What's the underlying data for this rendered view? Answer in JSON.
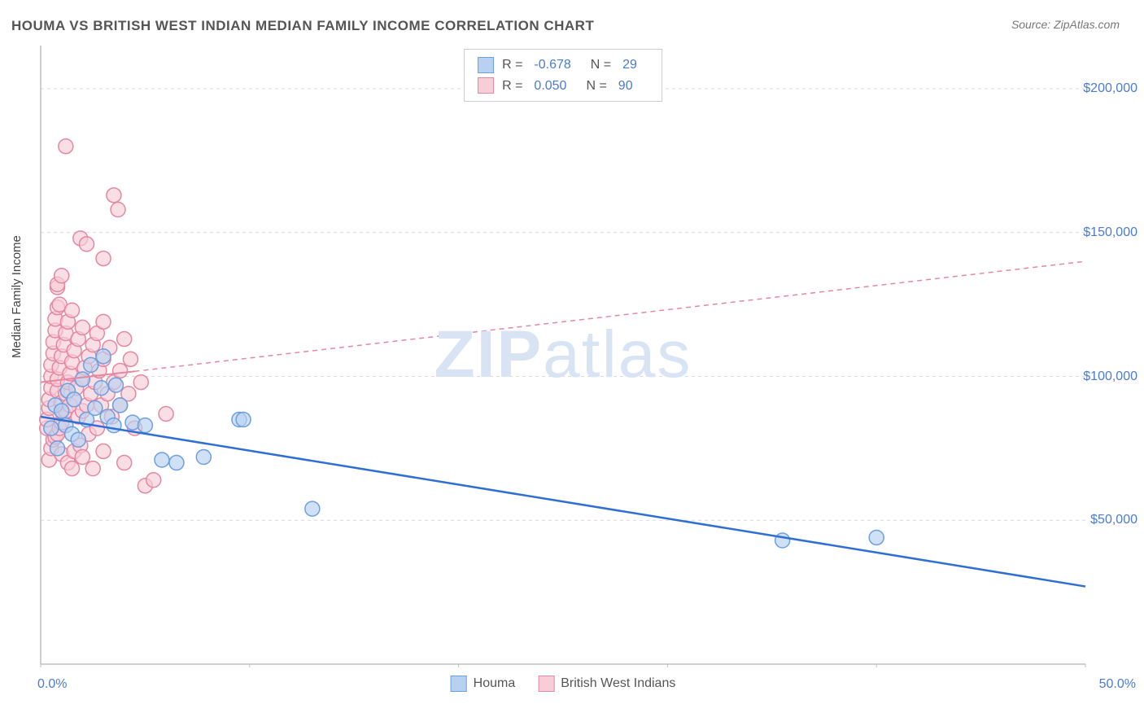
{
  "title": "HOUMA VS BRITISH WEST INDIAN MEDIAN FAMILY INCOME CORRELATION CHART",
  "source": "Source: ZipAtlas.com",
  "ylabel": "Median Family Income",
  "watermark_zip": "ZIP",
  "watermark_atlas": "atlas",
  "chart": {
    "type": "scatter",
    "xlim": [
      0,
      50
    ],
    "ylim": [
      0,
      215000
    ],
    "xtick_labels": [
      "0.0%",
      "50.0%"
    ],
    "ytick_values": [
      50000,
      100000,
      150000,
      200000
    ],
    "ytick_labels": [
      "$50,000",
      "$100,000",
      "$150,000",
      "$200,000"
    ],
    "xticks_minor": [
      0,
      10,
      20,
      30,
      40,
      50
    ],
    "grid_color": "#d9d9d9",
    "axis_color": "#bfbfbf",
    "background_color": "#ffffff",
    "marker_radius": 9,
    "marker_stroke_width": 1.5,
    "series": [
      {
        "name": "Houma",
        "fill": "#b9d1f0",
        "stroke": "#6c9fe0",
        "trend": {
          "x1": 0,
          "y1": 86000,
          "x2": 50,
          "y2": 27000,
          "stroke": "#2f6fd4",
          "width": 2.5,
          "solid_until_x": 50
        },
        "points": [
          [
            0.5,
            82000
          ],
          [
            0.7,
            90000
          ],
          [
            0.8,
            75000
          ],
          [
            1.0,
            88000
          ],
          [
            1.2,
            83000
          ],
          [
            1.3,
            95000
          ],
          [
            1.5,
            80000
          ],
          [
            1.6,
            92000
          ],
          [
            1.8,
            78000
          ],
          [
            2.0,
            99000
          ],
          [
            2.2,
            85000
          ],
          [
            2.4,
            104000
          ],
          [
            2.6,
            89000
          ],
          [
            2.9,
            96000
          ],
          [
            3.0,
            107000
          ],
          [
            3.2,
            86000
          ],
          [
            3.5,
            83000
          ],
          [
            3.6,
            97000
          ],
          [
            3.8,
            90000
          ],
          [
            4.4,
            84000
          ],
          [
            5.0,
            83000
          ],
          [
            5.8,
            71000
          ],
          [
            6.5,
            70000
          ],
          [
            7.8,
            72000
          ],
          [
            9.5,
            85000
          ],
          [
            9.7,
            85000
          ],
          [
            13.0,
            54000
          ],
          [
            35.5,
            43000
          ],
          [
            40.0,
            44000
          ]
        ]
      },
      {
        "name": "British West Indians",
        "fill": "#f7cdd8",
        "stroke": "#e687a2",
        "trend": {
          "x1": 0,
          "y1": 98000,
          "x2": 50,
          "y2": 140000,
          "stroke": "#e687a2",
          "width": 2,
          "solid_until_x": 4.5
        },
        "points": [
          [
            0.3,
            82000
          ],
          [
            0.3,
            85000
          ],
          [
            0.4,
            89000
          ],
          [
            0.4,
            92000
          ],
          [
            0.4,
            71000
          ],
          [
            0.5,
            96000
          ],
          [
            0.5,
            100000
          ],
          [
            0.5,
            104000
          ],
          [
            0.5,
            75000
          ],
          [
            0.6,
            108000
          ],
          [
            0.6,
            112000
          ],
          [
            0.6,
            78000
          ],
          [
            0.7,
            116000
          ],
          [
            0.7,
            120000
          ],
          [
            0.7,
            79000
          ],
          [
            0.8,
            95000
          ],
          [
            0.8,
            99000
          ],
          [
            0.8,
            124000
          ],
          [
            0.8,
            131000
          ],
          [
            0.8,
            132000
          ],
          [
            0.8,
            80000
          ],
          [
            0.9,
            103000
          ],
          [
            0.9,
            125000
          ],
          [
            0.9,
            82000
          ],
          [
            1.0,
            88000
          ],
          [
            1.0,
            91000
          ],
          [
            1.0,
            107000
          ],
          [
            1.0,
            135000
          ],
          [
            1.0,
            84000
          ],
          [
            1.0,
            73000
          ],
          [
            1.1,
            111000
          ],
          [
            1.1,
            87000
          ],
          [
            1.2,
            94000
          ],
          [
            1.2,
            115000
          ],
          [
            1.2,
            88000
          ],
          [
            1.2,
            180000
          ],
          [
            1.3,
            98000
          ],
          [
            1.3,
            119000
          ],
          [
            1.3,
            70000
          ],
          [
            1.4,
            90000
          ],
          [
            1.4,
            101000
          ],
          [
            1.5,
            105000
          ],
          [
            1.5,
            123000
          ],
          [
            1.5,
            68000
          ],
          [
            1.6,
            92000
          ],
          [
            1.6,
            109000
          ],
          [
            1.6,
            74000
          ],
          [
            1.7,
            96000
          ],
          [
            1.8,
            113000
          ],
          [
            1.8,
            86000
          ],
          [
            1.9,
            148000
          ],
          [
            1.9,
            76000
          ],
          [
            2.0,
            88000
          ],
          [
            2.0,
            99000
          ],
          [
            2.0,
            117000
          ],
          [
            2.0,
            72000
          ],
          [
            2.1,
            103000
          ],
          [
            2.2,
            90000
          ],
          [
            2.2,
            146000
          ],
          [
            2.3,
            107000
          ],
          [
            2.3,
            80000
          ],
          [
            2.4,
            94000
          ],
          [
            2.5,
            111000
          ],
          [
            2.5,
            68000
          ],
          [
            2.6,
            98000
          ],
          [
            2.7,
            115000
          ],
          [
            2.7,
            82000
          ],
          [
            2.8,
            102000
          ],
          [
            2.9,
            90000
          ],
          [
            3.0,
            106000
          ],
          [
            3.0,
            119000
          ],
          [
            3.0,
            141000
          ],
          [
            3.0,
            74000
          ],
          [
            3.2,
            94000
          ],
          [
            3.3,
            110000
          ],
          [
            3.4,
            86000
          ],
          [
            3.5,
            98000
          ],
          [
            3.5,
            163000
          ],
          [
            3.7,
            158000
          ],
          [
            3.8,
            102000
          ],
          [
            3.8,
            90000
          ],
          [
            4.0,
            113000
          ],
          [
            4.0,
            70000
          ],
          [
            4.2,
            94000
          ],
          [
            4.3,
            106000
          ],
          [
            4.5,
            82000
          ],
          [
            4.8,
            98000
          ],
          [
            5.0,
            62000
          ],
          [
            5.4,
            64000
          ],
          [
            6.0,
            87000
          ]
        ]
      }
    ],
    "stat_box": {
      "rows": [
        {
          "swatch_fill": "#b9d1f0",
          "swatch_stroke": "#6c9fe0",
          "r_label": "R =",
          "r_value": "-0.678",
          "n_label": "N =",
          "n_value": "29"
        },
        {
          "swatch_fill": "#f7cdd8",
          "swatch_stroke": "#e687a2",
          "r_label": "R =",
          "r_value": "0.050",
          "n_label": "N =",
          "n_value": "90"
        }
      ]
    },
    "bottom_legend": [
      {
        "swatch_fill": "#b9d1f0",
        "swatch_stroke": "#6c9fe0",
        "label": "Houma"
      },
      {
        "swatch_fill": "#f7cdd8",
        "swatch_stroke": "#e687a2",
        "label": "British West Indians"
      }
    ]
  }
}
